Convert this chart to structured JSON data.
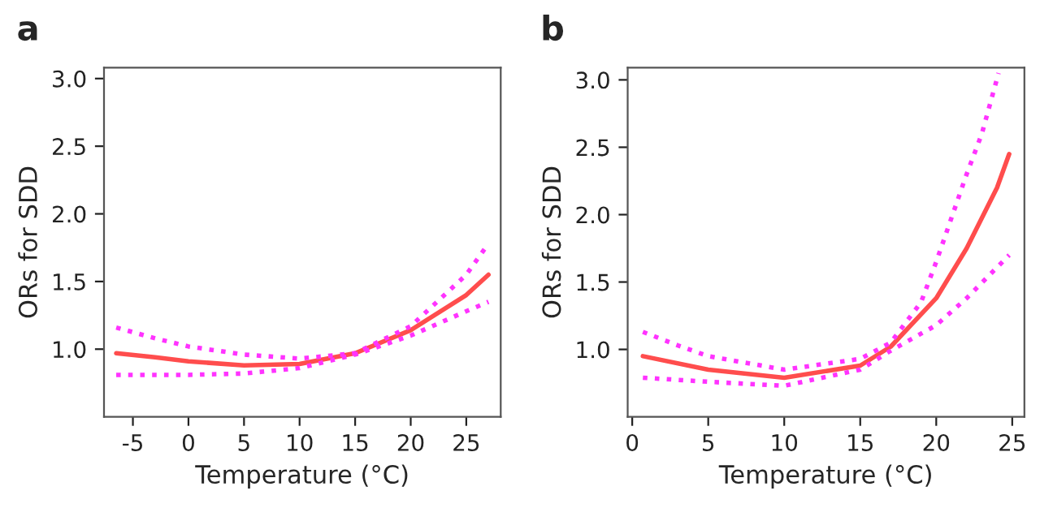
{
  "chart_data": [
    {
      "type": "line",
      "title": "a",
      "xlabel": "Temperature (°C)",
      "ylabel": "ORs for SDD",
      "xlim": [
        -7.6,
        28.1
      ],
      "ylim": [
        0.5,
        3.08
      ],
      "xticks": [
        -5,
        0,
        5,
        10,
        15,
        20,
        25
      ],
      "yticks": [
        {
          "value": 1.0,
          "label": "1.0"
        },
        {
          "value": 1.5,
          "label": "1.5"
        },
        {
          "value": 2.0,
          "label": "2.0"
        },
        {
          "value": 2.5,
          "label": "2.5"
        },
        {
          "value": 3.0,
          "label": "3.0"
        }
      ],
      "grid": false,
      "legend": false,
      "series": [
        {
          "color": "#ff4d4d",
          "line_style": "solid",
          "x": [
            -6.5,
            -3,
            0,
            5,
            10,
            15,
            20,
            25,
            27
          ],
          "values": [
            0.97,
            0.94,
            0.91,
            0.88,
            0.89,
            0.97,
            1.14,
            1.4,
            1.55
          ]
        },
        {
          "color": "#ff33ff",
          "line_style": "dotted",
          "x": [
            -6.5,
            -3,
            0,
            5,
            10,
            15,
            20,
            25,
            27
          ],
          "values": [
            1.16,
            1.08,
            1.02,
            0.96,
            0.93,
            0.97,
            1.17,
            1.55,
            1.78
          ]
        },
        {
          "color": "#ff33ff",
          "line_style": "dotted",
          "x": [
            -6.5,
            -3,
            0,
            5,
            10,
            15,
            20,
            25,
            27
          ],
          "values": [
            0.81,
            0.81,
            0.81,
            0.82,
            0.86,
            0.96,
            1.1,
            1.28,
            1.35
          ]
        }
      ]
    },
    {
      "type": "line",
      "title": "b",
      "xlabel": "Temperature (°C)",
      "ylabel": "ORs for SDD",
      "xlim": [
        -0.3,
        25.8
      ],
      "ylim": [
        0.5,
        3.09
      ],
      "xticks": [
        0,
        5,
        10,
        15,
        20,
        25
      ],
      "yticks": [
        {
          "value": 1.0,
          "label": "1.0"
        },
        {
          "value": 1.5,
          "label": "1.5"
        },
        {
          "value": 2.0,
          "label": "2.0"
        },
        {
          "value": 2.5,
          "label": "2.5"
        },
        {
          "value": 3.0,
          "label": "3.0"
        }
      ],
      "grid": false,
      "legend": false,
      "series": [
        {
          "color": "#ff4d4d",
          "line_style": "solid",
          "x": [
            0.7,
            5,
            10,
            15,
            17,
            20,
            22,
            24,
            24.8
          ],
          "values": [
            0.95,
            0.85,
            0.79,
            0.88,
            1.02,
            1.38,
            1.75,
            2.2,
            2.45
          ]
        },
        {
          "color": "#ff33ff",
          "line_style": "dotted",
          "x": [
            0.7,
            3,
            5,
            10,
            15,
            17,
            19,
            20,
            22,
            23,
            24.1
          ],
          "values": [
            1.13,
            1.03,
            0.95,
            0.85,
            0.93,
            1.05,
            1.35,
            1.65,
            2.3,
            2.6,
            3.05
          ]
        },
        {
          "color": "#ff33ff",
          "line_style": "dotted",
          "x": [
            0.7,
            5,
            10,
            15,
            17,
            20,
            22,
            24.8
          ],
          "values": [
            0.79,
            0.76,
            0.73,
            0.85,
            0.99,
            1.18,
            1.38,
            1.7
          ]
        }
      ]
    }
  ]
}
